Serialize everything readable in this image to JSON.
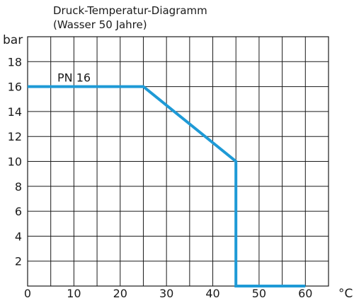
{
  "chart_data": {
    "type": "line",
    "title": "Druck-Temperatur-Diagramm",
    "subtitle": "(Wasser 50 Jahre)",
    "ylabel": "bar",
    "xlabel": "°C",
    "xlim": [
      0,
      65
    ],
    "ylim": [
      0,
      20
    ],
    "x_ticks": [
      0,
      10,
      20,
      30,
      40,
      50,
      60
    ],
    "y_ticks": [
      2,
      4,
      6,
      8,
      10,
      12,
      14,
      16,
      18
    ],
    "x_grid_step": 5,
    "y_grid_step": 2,
    "grid": true,
    "series": [
      {
        "name": "PN 16",
        "color": "#1e9ad6",
        "x": [
          0,
          25,
          45,
          45,
          60
        ],
        "y": [
          16,
          16,
          10,
          0,
          0
        ]
      }
    ]
  }
}
